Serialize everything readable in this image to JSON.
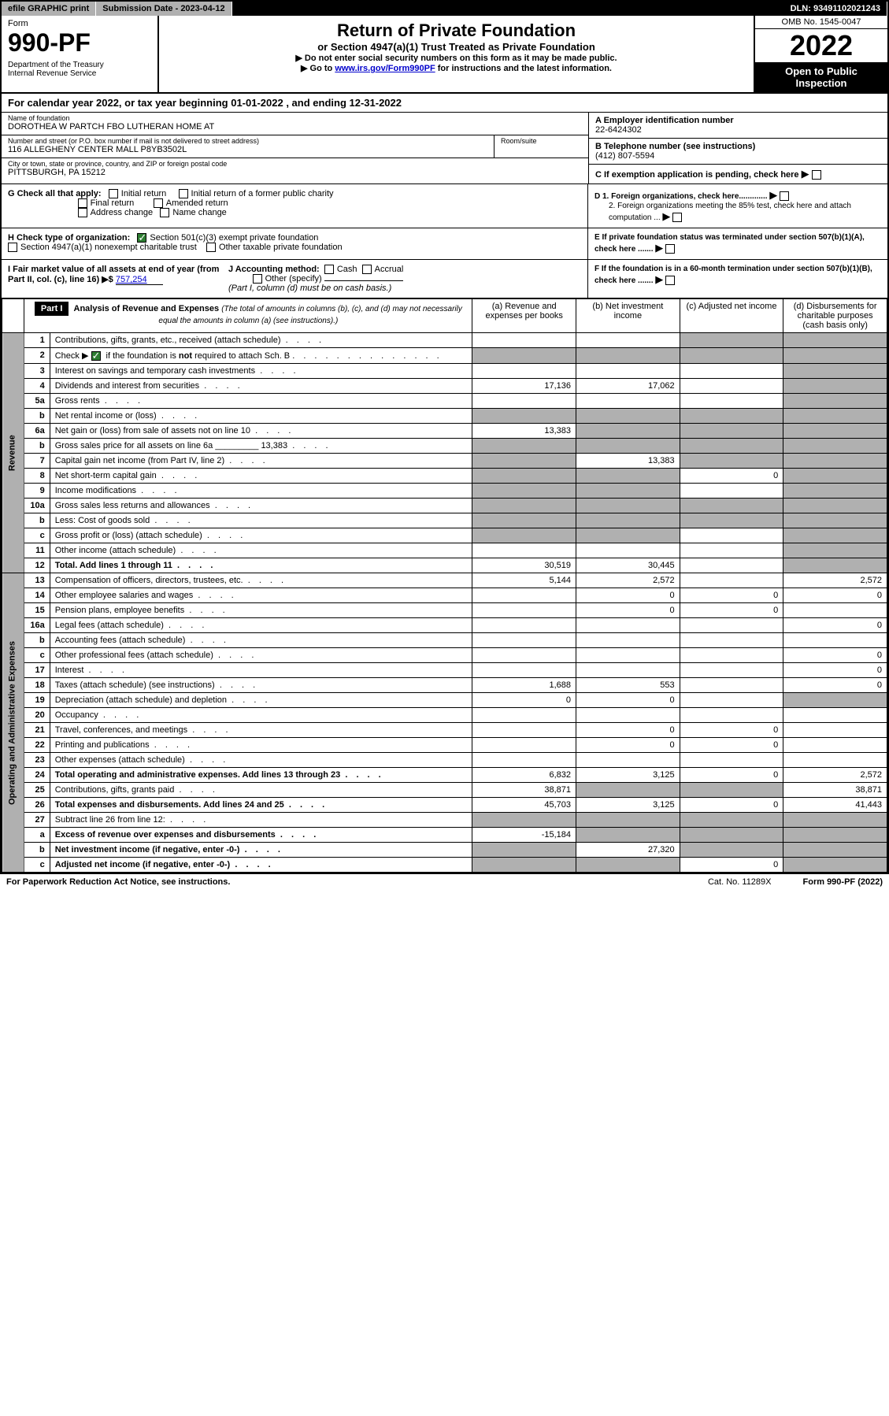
{
  "topbar": {
    "efile": "efile GRAPHIC print",
    "submission": "Submission Date - 2023-04-12",
    "dln": "DLN: 93491102021243"
  },
  "header": {
    "form_word": "Form",
    "form_num": "990-PF",
    "dept": "Department of the Treasury\nInternal Revenue Service",
    "title": "Return of Private Foundation",
    "subtitle": "or Section 4947(a)(1) Trust Treated as Private Foundation",
    "instr1": "▶ Do not enter social security numbers on this form as it may be made public.",
    "instr2_pre": "▶ Go to ",
    "instr2_link": "www.irs.gov/Form990PF",
    "instr2_post": " for instructions and the latest information.",
    "omb": "OMB No. 1545-0047",
    "year": "2022",
    "open_pub": "Open to Public Inspection"
  },
  "cal_year": "For calendar year 2022, or tax year beginning 01-01-2022                           , and ending 12-31-2022",
  "entity": {
    "name_lbl": "Name of foundation",
    "name": "DOROTHEA W PARTCH FBO LUTHERAN HOME AT",
    "addr_lbl": "Number and street (or P.O. box number if mail is not delivered to street address)",
    "addr": "116 ALLEGHENY CENTER MALL P8YB3502L",
    "room_lbl": "Room/suite",
    "city_lbl": "City or town, state or province, country, and ZIP or foreign postal code",
    "city": "PITTSBURGH, PA  15212",
    "ein_lbl": "A Employer identification number",
    "ein": "22-6424302",
    "tel_lbl": "B Telephone number (see instructions)",
    "tel": "(412) 807-5594",
    "c_lbl": "C If exemption application is pending, check here",
    "d1": "D 1. Foreign organizations, check here.............",
    "d2": "2. Foreign organizations meeting the 85% test, check here and attach computation ...",
    "e_lbl": "E  If private foundation status was terminated under section 507(b)(1)(A), check here .......",
    "f_lbl": "F  If the foundation is in a 60-month termination under section 507(b)(1)(B), check here .......",
    "g_lbl": "G Check all that apply:",
    "g_initial": "Initial return",
    "g_initial_former": "Initial return of a former public charity",
    "g_final": "Final return",
    "g_amended": "Amended return",
    "g_addr": "Address change",
    "g_name": "Name change",
    "h_lbl": "H Check type of organization:",
    "h_501c3": "Section 501(c)(3) exempt private foundation",
    "h_4947": "Section 4947(a)(1) nonexempt charitable trust",
    "h_other": "Other taxable private foundation",
    "i_lbl": "I Fair market value of all assets at end of year (from Part II, col. (c), line 16) ▶$",
    "i_val": "757,254",
    "j_lbl": "J Accounting method:",
    "j_cash": "Cash",
    "j_accrual": "Accrual",
    "j_other": "Other (specify)",
    "j_note": "(Part I, column (d) must be on cash basis.)"
  },
  "part1": {
    "hdr": "Part I",
    "title": "Analysis of Revenue and Expenses",
    "title_note": "(The total of amounts in columns (b), (c), and (d) may not necessarily equal the amounts in column (a) (see instructions).)",
    "col_a": "(a)   Revenue and expenses per books",
    "col_b": "(b)   Net investment income",
    "col_c": "(c)   Adjusted net income",
    "col_d": "(d)  Disbursements for charitable purposes (cash basis only)"
  },
  "sections": {
    "revenue": "Revenue",
    "opex": "Operating and Administrative Expenses"
  },
  "rows": [
    {
      "n": "1",
      "d": "Contributions, gifts, grants, etc., received (attach schedule)",
      "a": "",
      "b": "",
      "c": "grey",
      "dd": "grey"
    },
    {
      "n": "2",
      "d": "Check ▶ ☑ if the foundation is not required to attach Sch. B",
      "a": "grey",
      "b": "grey",
      "c": "grey",
      "dd": "grey",
      "bold_not": true
    },
    {
      "n": "3",
      "d": "Interest on savings and temporary cash investments",
      "a": "",
      "b": "",
      "c": "",
      "dd": "grey"
    },
    {
      "n": "4",
      "d": "Dividends and interest from securities",
      "a": "17,136",
      "b": "17,062",
      "c": "",
      "dd": "grey"
    },
    {
      "n": "5a",
      "d": "Gross rents",
      "a": "",
      "b": "",
      "c": "",
      "dd": "grey"
    },
    {
      "n": "b",
      "d": "Net rental income or (loss)",
      "a": "grey",
      "b": "grey",
      "c": "grey",
      "dd": "grey"
    },
    {
      "n": "6a",
      "d": "Net gain or (loss) from sale of assets not on line 10",
      "a": "13,383",
      "b": "grey",
      "c": "grey",
      "dd": "grey"
    },
    {
      "n": "b",
      "d": "Gross sales price for all assets on line 6a _________ 13,383",
      "a": "grey",
      "b": "grey",
      "c": "grey",
      "dd": "grey"
    },
    {
      "n": "7",
      "d": "Capital gain net income (from Part IV, line 2)",
      "a": "grey",
      "b": "13,383",
      "c": "grey",
      "dd": "grey"
    },
    {
      "n": "8",
      "d": "Net short-term capital gain",
      "a": "grey",
      "b": "grey",
      "c": "0",
      "dd": "grey"
    },
    {
      "n": "9",
      "d": "Income modifications",
      "a": "grey",
      "b": "grey",
      "c": "",
      "dd": "grey"
    },
    {
      "n": "10a",
      "d": "Gross sales less returns and allowances",
      "a": "grey",
      "b": "grey",
      "c": "grey",
      "dd": "grey"
    },
    {
      "n": "b",
      "d": "Less: Cost of goods sold",
      "a": "grey",
      "b": "grey",
      "c": "grey",
      "dd": "grey"
    },
    {
      "n": "c",
      "d": "Gross profit or (loss) (attach schedule)",
      "a": "grey",
      "b": "grey",
      "c": "",
      "dd": "grey"
    },
    {
      "n": "11",
      "d": "Other income (attach schedule)",
      "a": "",
      "b": "",
      "c": "",
      "dd": "grey"
    },
    {
      "n": "12",
      "d": "Total. Add lines 1 through 11",
      "a": "30,519",
      "b": "30,445",
      "c": "",
      "dd": "grey",
      "bold": true
    },
    {
      "n": "13",
      "d": "Compensation of officers, directors, trustees, etc.",
      "a": "5,144",
      "b": "2,572",
      "c": "",
      "dd": "2,572"
    },
    {
      "n": "14",
      "d": "Other employee salaries and wages",
      "a": "",
      "b": "0",
      "c": "0",
      "dd": "0"
    },
    {
      "n": "15",
      "d": "Pension plans, employee benefits",
      "a": "",
      "b": "0",
      "c": "0",
      "dd": ""
    },
    {
      "n": "16a",
      "d": "Legal fees (attach schedule)",
      "a": "",
      "b": "",
      "c": "",
      "dd": "0"
    },
    {
      "n": "b",
      "d": "Accounting fees (attach schedule)",
      "a": "",
      "b": "",
      "c": "",
      "dd": ""
    },
    {
      "n": "c",
      "d": "Other professional fees (attach schedule)",
      "a": "",
      "b": "",
      "c": "",
      "dd": "0"
    },
    {
      "n": "17",
      "d": "Interest",
      "a": "",
      "b": "",
      "c": "",
      "dd": "0"
    },
    {
      "n": "18",
      "d": "Taxes (attach schedule) (see instructions)",
      "a": "1,688",
      "b": "553",
      "c": "",
      "dd": "0"
    },
    {
      "n": "19",
      "d": "Depreciation (attach schedule) and depletion",
      "a": "0",
      "b": "0",
      "c": "",
      "dd": "grey"
    },
    {
      "n": "20",
      "d": "Occupancy",
      "a": "",
      "b": "",
      "c": "",
      "dd": ""
    },
    {
      "n": "21",
      "d": "Travel, conferences, and meetings",
      "a": "",
      "b": "0",
      "c": "0",
      "dd": ""
    },
    {
      "n": "22",
      "d": "Printing and publications",
      "a": "",
      "b": "0",
      "c": "0",
      "dd": ""
    },
    {
      "n": "23",
      "d": "Other expenses (attach schedule)",
      "a": "",
      "b": "",
      "c": "",
      "dd": ""
    },
    {
      "n": "24",
      "d": "Total operating and administrative expenses. Add lines 13 through 23",
      "a": "6,832",
      "b": "3,125",
      "c": "0",
      "dd": "2,572",
      "bold": true
    },
    {
      "n": "25",
      "d": "Contributions, gifts, grants paid",
      "a": "38,871",
      "b": "grey",
      "c": "grey",
      "dd": "38,871"
    },
    {
      "n": "26",
      "d": "Total expenses and disbursements. Add lines 24 and 25",
      "a": "45,703",
      "b": "3,125",
      "c": "0",
      "dd": "41,443",
      "bold": true
    },
    {
      "n": "27",
      "d": "Subtract line 26 from line 12:",
      "a": "grey",
      "b": "grey",
      "c": "grey",
      "dd": "grey"
    },
    {
      "n": "a",
      "d": "Excess of revenue over expenses and disbursements",
      "a": "-15,184",
      "b": "grey",
      "c": "grey",
      "dd": "grey",
      "bold": true
    },
    {
      "n": "b",
      "d": "Net investment income (if negative, enter -0-)",
      "a": "grey",
      "b": "27,320",
      "c": "grey",
      "dd": "grey",
      "bold": true
    },
    {
      "n": "c",
      "d": "Adjusted net income (if negative, enter -0-)",
      "a": "grey",
      "b": "grey",
      "c": "0",
      "dd": "grey",
      "bold": true
    }
  ],
  "footer": {
    "pra": "For Paperwork Reduction Act Notice, see instructions.",
    "cat": "Cat. No. 11289X",
    "form": "Form 990-PF (2022)"
  }
}
